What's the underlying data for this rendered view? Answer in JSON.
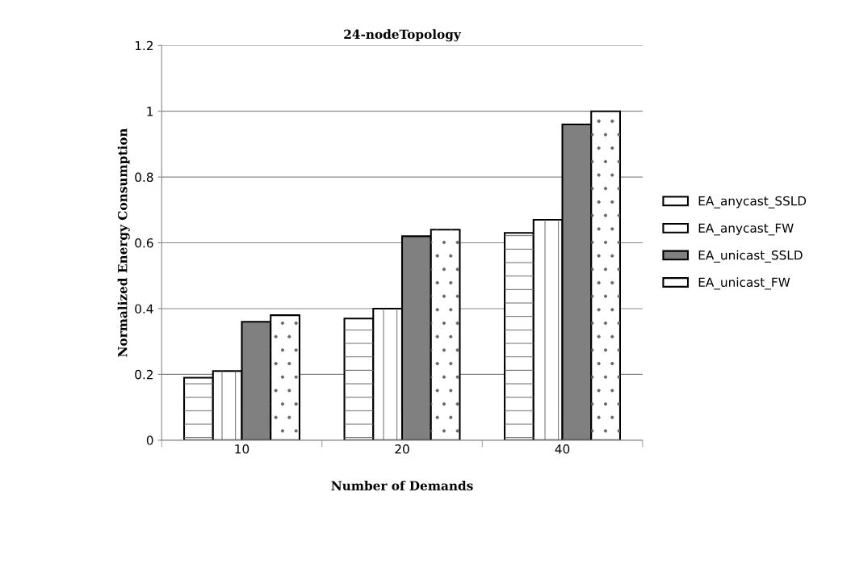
{
  "chart_data": {
    "type": "bar",
    "title": "24-nodeTopology",
    "xlabel": "Number of Demands",
    "ylabel": "Normalized Energy Consumption",
    "categories": [
      "10",
      "20",
      "40"
    ],
    "series": [
      {
        "name": "EA_anycast_SSLD",
        "color": "#ffffff",
        "values": [
          0.19,
          0.37,
          0.63
        ]
      },
      {
        "name": "EA_anycast_FW",
        "color": "#ffffff",
        "values": [
          0.21,
          0.4,
          0.67
        ]
      },
      {
        "name": "EA_unicast_SSLD",
        "color": "#808080",
        "values": [
          0.36,
          0.62,
          0.96
        ]
      },
      {
        "name": "EA_unicast_FW",
        "color": "#ffffff",
        "values": [
          0.38,
          0.64,
          1.0
        ]
      }
    ],
    "ylim": [
      0,
      1.2
    ],
    "yticks": [
      0,
      0.2,
      0.4,
      0.6,
      0.8,
      1,
      1.2
    ],
    "grid": "y",
    "legend": "right"
  }
}
